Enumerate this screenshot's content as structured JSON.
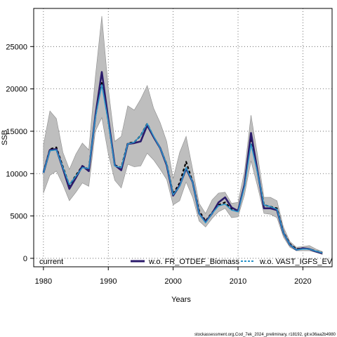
{
  "chart_data": {
    "type": "line",
    "title": "",
    "xlabel": "Years",
    "ylabel": "SSB",
    "xlim": [
      1978.5,
      2024.5
    ],
    "ylim": [
      -1000,
      29500
    ],
    "xticks": [
      1980,
      1990,
      2000,
      2010,
      2020
    ],
    "yticks": [
      0,
      5000,
      10000,
      15000,
      20000,
      25000
    ],
    "grid": true,
    "legend_position": "bottom",
    "colors": {
      "current": "#000000",
      "fr_otdef": "#2b1b6b",
      "vast_igfs": "#2a93c9",
      "band": "#bebebe",
      "band_edge": "#8c8c8c"
    },
    "x": [
      1980,
      1981,
      1982,
      1983,
      1984,
      1985,
      1986,
      1987,
      1988,
      1989,
      1990,
      1991,
      1992,
      1993,
      1994,
      1995,
      1996,
      1997,
      1998,
      1999,
      2000,
      2001,
      2002,
      2003,
      2004,
      2005,
      2006,
      2007,
      2008,
      2009,
      2010,
      2011,
      2012,
      2013,
      2014,
      2015,
      2016,
      2017,
      2018,
      2019,
      2020,
      2021,
      2022,
      2023
    ],
    "band": {
      "upper": [
        13400,
        17400,
        16500,
        12500,
        10500,
        12300,
        13600,
        12800,
        21400,
        28600,
        20000,
        13800,
        14400,
        18000,
        17500,
        18800,
        20400,
        17700,
        16000,
        13800,
        9400,
        12500,
        14400,
        10500,
        6500,
        5300,
        6900,
        7700,
        7800,
        6500,
        6600,
        10300,
        16900,
        12200,
        7200,
        7200,
        6800,
        3700,
        2000,
        1300,
        1400,
        1500,
        1100,
        800
      ],
      "lower": [
        7700,
        9800,
        10300,
        8700,
        6800,
        7800,
        8900,
        8500,
        15000,
        16600,
        12300,
        9200,
        8300,
        11100,
        10800,
        10900,
        12400,
        11600,
        10500,
        9300,
        6300,
        6800,
        9000,
        7200,
        4400,
        3700,
        4700,
        5500,
        5900,
        4800,
        4900,
        7500,
        11500,
        8500,
        5300,
        5200,
        4800,
        2500,
        1300,
        900,
        900,
        900,
        700,
        450
      ]
    },
    "series": [
      {
        "name": "current",
        "values": [
          10200,
          12900,
          13100,
          10800,
          8600,
          9800,
          10900,
          10500,
          16700,
          20900,
          16200,
          11000,
          10700,
          13600,
          13700,
          14500,
          15900,
          14300,
          13000,
          11100,
          7600,
          8900,
          11400,
          9000,
          5600,
          4400,
          5400,
          6300,
          6600,
          5800,
          5600,
          8700,
          14200,
          10200,
          6300,
          6100,
          5900,
          3100,
          1700,
          1100,
          1200,
          1100,
          850,
          650
        ]
      },
      {
        "name": "w.o. FR_OTDEF_Biomass",
        "values": [
          10100,
          12800,
          12900,
          10600,
          8200,
          9500,
          10900,
          10300,
          16800,
          22000,
          16400,
          11000,
          10400,
          13500,
          13600,
          13800,
          15700,
          14300,
          13000,
          11000,
          7400,
          8600,
          10600,
          9000,
          5300,
          4300,
          5300,
          6600,
          7200,
          6000,
          5600,
          8700,
          14800,
          10300,
          5900,
          5900,
          5700,
          3000,
          1600,
          1000,
          1200,
          1100,
          800,
          600
        ]
      },
      {
        "name": "w.o. VAST_IGFS_EV",
        "values": [
          10100,
          12700,
          12800,
          10700,
          8700,
          9700,
          10700,
          10600,
          16600,
          20500,
          16100,
          10900,
          10700,
          13500,
          13700,
          14500,
          15900,
          14400,
          13000,
          11100,
          7500,
          8500,
          10700,
          9000,
          5300,
          4200,
          5300,
          6200,
          6400,
          5700,
          5500,
          8500,
          13500,
          10100,
          6300,
          6100,
          5800,
          3000,
          1600,
          1000,
          1100,
          1100,
          850,
          650
        ]
      }
    ],
    "watermark": "stockassessment.org,Cod_7ek_2024_preliminary, r18192, git:e36aa2b4980"
  }
}
